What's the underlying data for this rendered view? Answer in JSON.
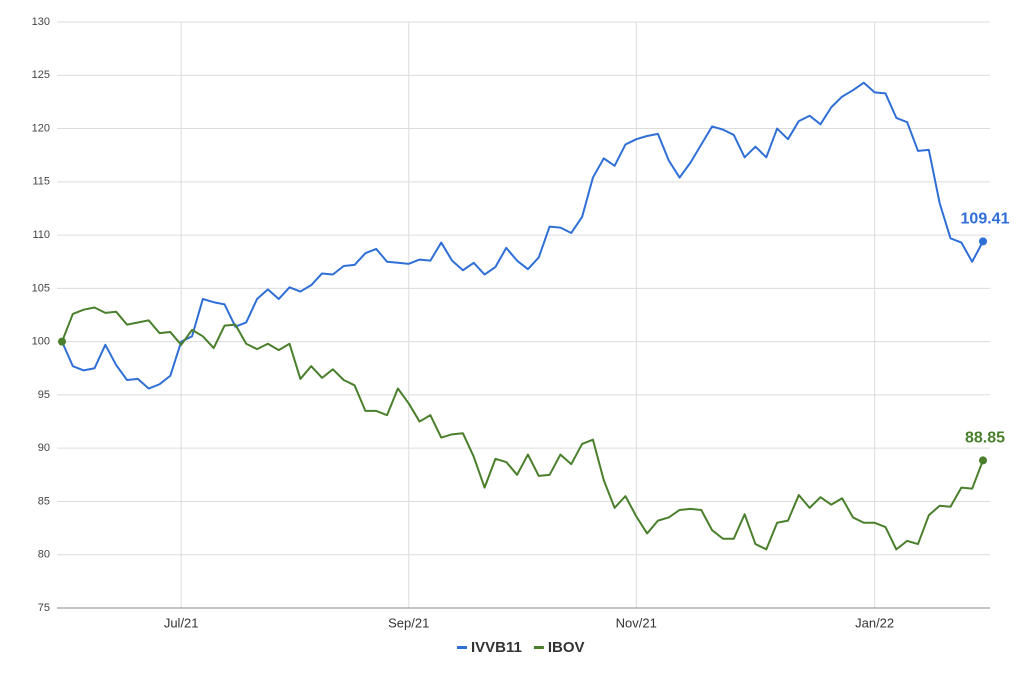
{
  "chart_data": {
    "type": "line",
    "categories": [
      null,
      null,
      null,
      null,
      null,
      null,
      null,
      null,
      null,
      null,
      null,
      "Jul/21",
      null,
      null,
      null,
      null,
      null,
      null,
      null,
      null,
      null,
      null,
      null,
      null,
      null,
      null,
      null,
      null,
      null,
      null,
      null,
      null,
      "Sep/21",
      null,
      null,
      null,
      null,
      null,
      null,
      null,
      null,
      null,
      null,
      null,
      null,
      null,
      null,
      null,
      null,
      null,
      null,
      null,
      null,
      "Nov/21",
      null,
      null,
      null,
      null,
      null,
      null,
      null,
      null,
      null,
      null,
      null,
      null,
      null,
      null,
      null,
      null,
      null,
      null,
      null,
      null,
      null,
      "Jan/22",
      null,
      null,
      null,
      null,
      null,
      null,
      null,
      null,
      null,
      null
    ],
    "series": [
      {
        "name": "IVVB11",
        "color": "#2f6fd6",
        "values": [
          100,
          97.7,
          97.3,
          97.5,
          99.7,
          97.8,
          96.4,
          96.5,
          95.6,
          96.0,
          96.8,
          100.0,
          100.5,
          104.0,
          103.7,
          103.5,
          101.4,
          101.8,
          104.0,
          104.9,
          104.0,
          105.1,
          104.7,
          105.3,
          106.4,
          106.3,
          107.1,
          107.2,
          108.3,
          108.7,
          107.5,
          107.4,
          107.3,
          107.7,
          107.6,
          109.3,
          107.6,
          106.7,
          107.4,
          106.3,
          107.0,
          108.8,
          107.6,
          106.8,
          107.9,
          110.8,
          110.7,
          110.2,
          111.7,
          115.4,
          117.2,
          116.5,
          118.5,
          119.0,
          119.3,
          119.5,
          117.0,
          115.4,
          116.8,
          118.5,
          120.2,
          119.9,
          119.4,
          117.3,
          118.3,
          117.3,
          120.0,
          119.0,
          120.7,
          121.2,
          120.4,
          122.0,
          123.0,
          123.6,
          124.3,
          123.4,
          123.3,
          121.0,
          120.6,
          117.9,
          118.0,
          113.0,
          109.7,
          109.3,
          107.5,
          109.41
        ]
      },
      {
        "name": "IBOV",
        "color": "#4a7f2c",
        "values": [
          100,
          102.6,
          103.0,
          103.2,
          102.7,
          102.8,
          101.6,
          101.8,
          102.0,
          100.8,
          100.9,
          99.7,
          101.1,
          100.5,
          99.4,
          101.5,
          101.6,
          99.8,
          99.3,
          99.8,
          99.2,
          99.8,
          96.5,
          97.7,
          96.6,
          97.4,
          96.4,
          95.9,
          93.5,
          93.5,
          93.1,
          95.6,
          94.2,
          92.5,
          93.1,
          91.0,
          91.3,
          91.4,
          89.2,
          86.3,
          89.0,
          88.7,
          87.5,
          89.4,
          87.4,
          87.5,
          89.4,
          88.5,
          90.4,
          90.8,
          87.0,
          84.4,
          85.5,
          83.6,
          82.0,
          83.2,
          83.5,
          84.2,
          84.3,
          84.2,
          82.3,
          81.5,
          81.5,
          83.8,
          81.0,
          80.5,
          83.0,
          83.2,
          85.6,
          84.4,
          85.4,
          84.7,
          85.3,
          83.5,
          83.0,
          83.0,
          82.6,
          80.5,
          81.3,
          81.0,
          83.7,
          84.6,
          84.5,
          86.3,
          86.2,
          88.85
        ]
      }
    ],
    "ylim": [
      75,
      130
    ],
    "yticks": [
      75,
      80,
      85,
      90,
      95,
      100,
      105,
      110,
      115,
      120,
      125,
      130
    ],
    "grid": true,
    "legend": "bottom"
  }
}
